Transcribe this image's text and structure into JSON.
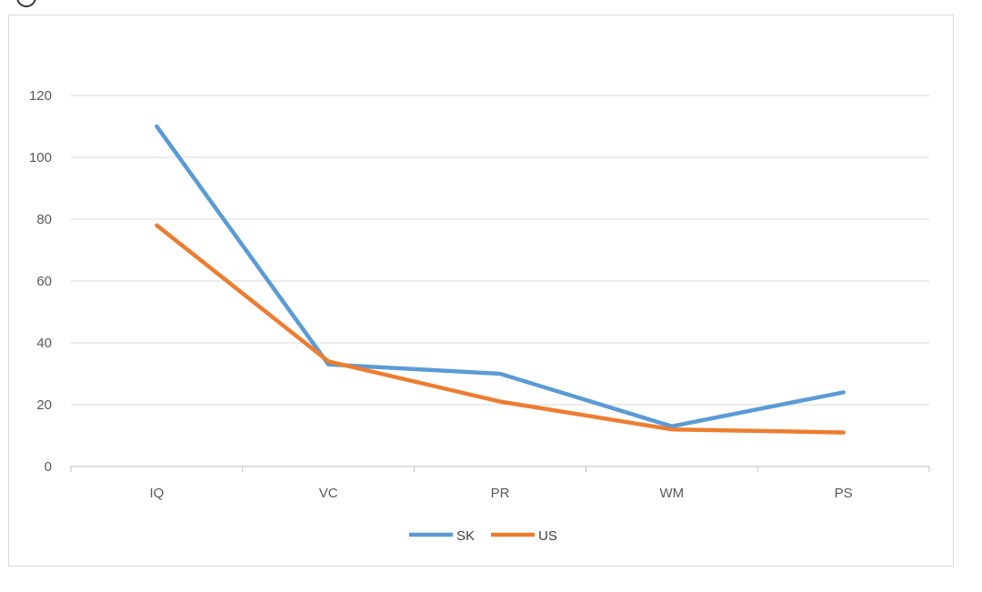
{
  "chart_data": {
    "type": "line",
    "categories": [
      "IQ",
      "VC",
      "PR",
      "WM",
      "PS"
    ],
    "series": [
      {
        "name": "SK",
        "values": [
          110,
          33,
          30,
          13,
          24
        ],
        "color": "#5b9bd5"
      },
      {
        "name": "US",
        "values": [
          78,
          34,
          21,
          12,
          11
        ],
        "color": "#ed7d31"
      }
    ],
    "ylim": [
      0,
      120
    ],
    "yticks": [
      0,
      20,
      40,
      60,
      80,
      100,
      120
    ],
    "grid": true,
    "legend_position": "bottom"
  }
}
